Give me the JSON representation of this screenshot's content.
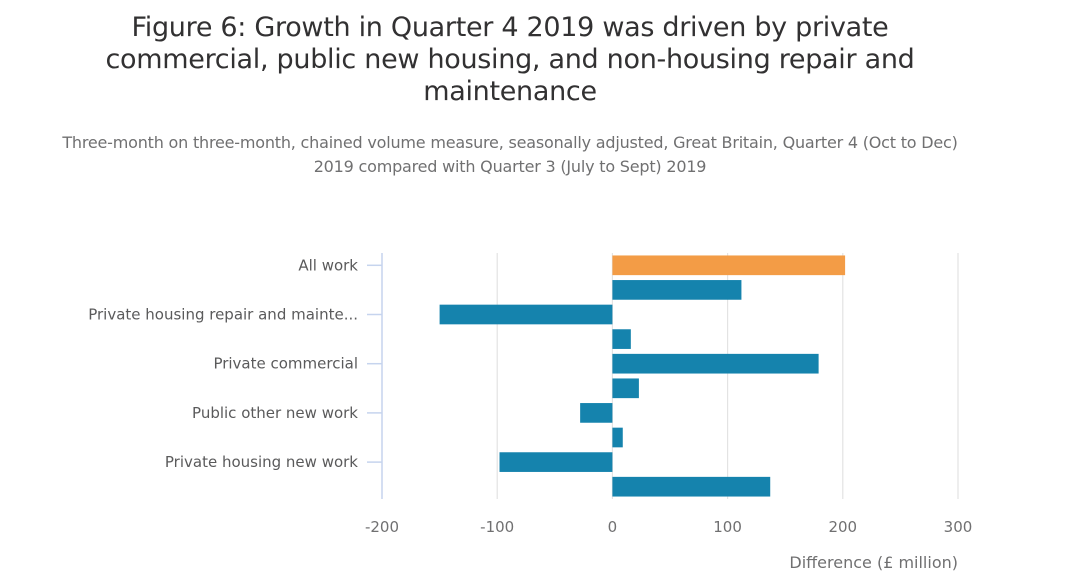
{
  "header": {
    "title": "Figure 6: Growth in Quarter 4 2019 was driven by private commercial, public new housing, and non-housing repair and maintenance",
    "subtitle": "Three-month on three-month, chained volume measure, seasonally adjusted, Great Britain, Quarter 4 (Oct to Dec) 2019 compared with Quarter 3 (July to Sept) 2019"
  },
  "chart_data": {
    "type": "bar",
    "orientation": "horizontal",
    "title": "Figure 6: Growth in Quarter 4 2019 was driven by private commercial, public new housing, and non-housing repair and maintenance",
    "subtitle": "Three-month on three-month, chained volume measure, seasonally adjusted, Great Britain, Quarter 4 (Oct to Dec) 2019 compared with Quarter 3 (July to Sept) 2019",
    "xlabel": "Difference (£ million)",
    "ylabel": "",
    "xlim": [
      -200,
      300
    ],
    "xticks": [
      -200,
      -100,
      0,
      100,
      200,
      300
    ],
    "xtick_labels": [
      "-200",
      "-100",
      "0",
      "100",
      "200",
      "300"
    ],
    "grid": "vertical",
    "categories": [
      "All work",
      "",
      "Private housing repair and mainte...",
      "",
      "Private commercial",
      "",
      "Public other new work",
      "",
      "Private housing new work",
      ""
    ],
    "values": [
      202,
      112,
      -150,
      16,
      179,
      23,
      -28,
      9,
      -98,
      137
    ],
    "colors": [
      "#f39c46",
      "#1583ad",
      "#1583ad",
      "#1583ad",
      "#1583ad",
      "#1583ad",
      "#1583ad",
      "#1583ad",
      "#1583ad",
      "#1583ad"
    ],
    "highlight_color": "#f39c46",
    "bar_color": "#1583ad",
    "axis_color": "#c6d4ee",
    "grid_color": "#e3e3e3"
  }
}
